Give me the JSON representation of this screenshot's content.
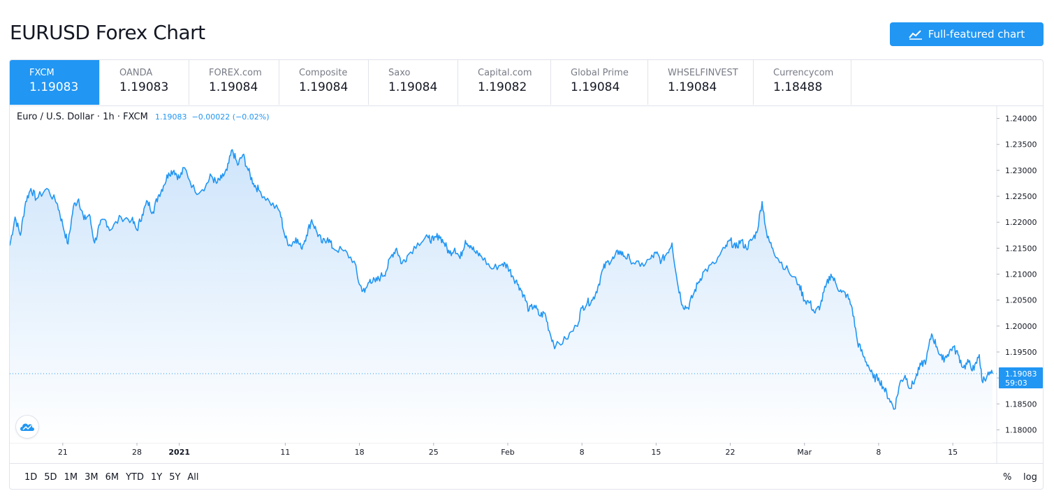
{
  "header": {
    "title": "EURUSD Forex Chart",
    "button_label": "Full-featured chart"
  },
  "tabs": [
    {
      "source": "FXCM",
      "price": "1.19083",
      "active": true
    },
    {
      "source": "OANDA",
      "price": "1.19083"
    },
    {
      "source": "FOREX.com",
      "price": "1.19084"
    },
    {
      "source": "Composite",
      "price": "1.19084"
    },
    {
      "source": "Saxo",
      "price": "1.19084"
    },
    {
      "source": "Capital.com",
      "price": "1.19082"
    },
    {
      "source": "Global Prime",
      "price": "1.19084"
    },
    {
      "source": "WHSELFINVEST",
      "price": "1.19084"
    },
    {
      "source": "Currencycom",
      "price": "1.18488"
    }
  ],
  "legend": {
    "symbol": "Euro / U.S. Dollar · 1h · FXCM",
    "last": "1.19083",
    "change": "−0.00022 (−0.02%)"
  },
  "price_label": {
    "price": "1.19083",
    "countdown": "59:03"
  },
  "ranges": [
    "1D",
    "5D",
    "1M",
    "3M",
    "6M",
    "YTD",
    "1Y",
    "5Y",
    "All"
  ],
  "scale_buttons": {
    "percent": "%",
    "log": "log"
  },
  "colors": {
    "accent": "#2196f3",
    "line": "#2196f3",
    "area_top": "#cfe5fb",
    "area_bottom": "#ffffff"
  },
  "icons": {
    "button_icon": "chart-line-icon",
    "logo": "tradingview-cloud-icon"
  },
  "chart_data": {
    "type": "area",
    "title": "",
    "xlabel": "",
    "ylabel": "",
    "ylim": [
      1.1775,
      1.2425
    ],
    "y_ticks": [
      "1.24000",
      "1.23500",
      "1.23000",
      "1.22500",
      "1.22000",
      "1.21500",
      "1.21000",
      "1.20500",
      "1.20000",
      "1.19500",
      "1.19000",
      "1.18500",
      "1.18000"
    ],
    "y_tick_values": [
      1.24,
      1.235,
      1.23,
      1.225,
      1.22,
      1.215,
      1.21,
      1.205,
      1.2,
      1.195,
      1.19,
      1.185,
      1.18
    ],
    "x_ticks": [
      {
        "label": "21",
        "x": "2020-12-21"
      },
      {
        "label": "28",
        "x": "2020-12-28"
      },
      {
        "label": "2021",
        "x": "2021-01-01",
        "bold": true
      },
      {
        "label": "11",
        "x": "2021-01-11"
      },
      {
        "label": "18",
        "x": "2021-01-18"
      },
      {
        "label": "25",
        "x": "2021-01-25"
      },
      {
        "label": "Feb",
        "x": "2021-02-01"
      },
      {
        "label": "8",
        "x": "2021-02-08"
      },
      {
        "label": "15",
        "x": "2021-02-15"
      },
      {
        "label": "22",
        "x": "2021-02-22"
      },
      {
        "label": "Mar",
        "x": "2021-03-01"
      },
      {
        "label": "8",
        "x": "2021-03-08"
      },
      {
        "label": "15",
        "x": "2021-03-15"
      }
    ],
    "x_range": [
      "2020-12-16 00:00",
      "2021-03-18 18:00"
    ],
    "last_price": 1.19083,
    "series": [
      {
        "values": [
          [
            "2020-12-16 00:00",
            1.2155
          ],
          [
            "2020-12-16 12:00",
            1.221
          ],
          [
            "2020-12-17 00:00",
            1.2175
          ],
          [
            "2020-12-17 12:00",
            1.224
          ],
          [
            "2020-12-18 00:00",
            1.2265
          ],
          [
            "2020-12-18 12:00",
            1.2245
          ],
          [
            "2020-12-19 12:00",
            1.2265
          ],
          [
            "2020-12-20 12:00",
            1.2235
          ],
          [
            "2020-12-21 00:00",
            1.2195
          ],
          [
            "2020-12-21 12:00",
            1.2158
          ],
          [
            "2020-12-22 00:00",
            1.223
          ],
          [
            "2020-12-22 12:00",
            1.2245
          ],
          [
            "2020-12-23 00:00",
            1.2205
          ],
          [
            "2020-12-23 12:00",
            1.2215
          ],
          [
            "2020-12-24 00:00",
            1.216
          ],
          [
            "2020-12-24 12:00",
            1.2195
          ],
          [
            "2020-12-25 00:00",
            1.2205
          ],
          [
            "2020-12-25 12:00",
            1.2185
          ],
          [
            "2020-12-26 12:00",
            1.221
          ],
          [
            "2020-12-27 12:00",
            1.2205
          ],
          [
            "2020-12-28 00:00",
            1.2185
          ],
          [
            "2020-12-28 12:00",
            1.2215
          ],
          [
            "2020-12-29 00:00",
            1.224
          ],
          [
            "2020-12-29 12:00",
            1.222
          ],
          [
            "2020-12-30 00:00",
            1.225
          ],
          [
            "2020-12-30 12:00",
            1.227
          ],
          [
            "2020-12-31 00:00",
            1.2295
          ],
          [
            "2020-12-31 12:00",
            1.23
          ],
          [
            "2021-01-01 00:00",
            1.2285
          ],
          [
            "2021-01-01 12:00",
            1.2305
          ],
          [
            "2021-01-02 12:00",
            1.2258
          ],
          [
            "2021-01-03 12:00",
            1.227
          ],
          [
            "2021-01-04 00:00",
            1.229
          ],
          [
            "2021-01-04 12:00",
            1.2275
          ],
          [
            "2021-01-05 00:00",
            1.2285
          ],
          [
            "2021-01-05 12:00",
            1.23
          ],
          [
            "2021-01-06 00:00",
            1.234
          ],
          [
            "2021-01-06 12:00",
            1.231
          ],
          [
            "2021-01-07 00:00",
            1.233
          ],
          [
            "2021-01-07 12:00",
            1.23
          ],
          [
            "2021-01-08 00:00",
            1.2275
          ],
          [
            "2021-01-08 12:00",
            1.2262
          ],
          [
            "2021-01-09 12:00",
            1.224
          ],
          [
            "2021-01-10 12:00",
            1.222
          ],
          [
            "2021-01-11 00:00",
            1.217
          ],
          [
            "2021-01-11 12:00",
            1.2155
          ],
          [
            "2021-01-12 00:00",
            1.217
          ],
          [
            "2021-01-12 12:00",
            1.215
          ],
          [
            "2021-01-13 00:00",
            1.2175
          ],
          [
            "2021-01-13 12:00",
            1.2205
          ],
          [
            "2021-01-14 00:00",
            1.218
          ],
          [
            "2021-01-14 12:00",
            1.216
          ],
          [
            "2021-01-15 00:00",
            1.217
          ],
          [
            "2021-01-15 12:00",
            1.215
          ],
          [
            "2021-01-16 12:00",
            1.2145
          ],
          [
            "2021-01-17 12:00",
            1.2125
          ],
          [
            "2021-01-18 00:00",
            1.208
          ],
          [
            "2021-01-18 12:00",
            1.2065
          ],
          [
            "2021-01-19 00:00",
            1.209
          ],
          [
            "2021-01-19 12:00",
            1.2085
          ],
          [
            "2021-01-20 00:00",
            1.2095
          ],
          [
            "2021-01-20 12:00",
            1.2105
          ],
          [
            "2021-01-21 00:00",
            1.2135
          ],
          [
            "2021-01-21 12:00",
            1.215
          ],
          [
            "2021-01-22 00:00",
            1.212
          ],
          [
            "2021-01-22 12:00",
            1.2135
          ],
          [
            "2021-01-23 12:00",
            1.216
          ],
          [
            "2021-01-24 12:00",
            1.217
          ],
          [
            "2021-01-25 00:00",
            1.2165
          ],
          [
            "2021-01-25 12:00",
            1.2175
          ],
          [
            "2021-01-26 00:00",
            1.216
          ],
          [
            "2021-01-26 12:00",
            1.214
          ],
          [
            "2021-01-27 00:00",
            1.215
          ],
          [
            "2021-01-27 12:00",
            1.213
          ],
          [
            "2021-01-28 00:00",
            1.2165
          ],
          [
            "2021-01-28 12:00",
            1.2155
          ],
          [
            "2021-01-29 00:00",
            1.214
          ],
          [
            "2021-01-29 12:00",
            1.2135
          ],
          [
            "2021-01-30 12:00",
            1.211
          ],
          [
            "2021-01-31 12:00",
            1.212
          ],
          [
            "2021-02-01 00:00",
            1.2115
          ],
          [
            "2021-02-01 12:00",
            1.2095
          ],
          [
            "2021-02-02 00:00",
            1.208
          ],
          [
            "2021-02-02 12:00",
            1.206
          ],
          [
            "2021-02-03 00:00",
            1.203
          ],
          [
            "2021-02-03 12:00",
            1.204
          ],
          [
            "2021-02-04 00:00",
            1.202
          ],
          [
            "2021-02-04 12:00",
            1.2025
          ],
          [
            "2021-02-05 00:00",
            1.1985
          ],
          [
            "2021-02-05 12:00",
            1.196
          ],
          [
            "2021-02-06 12:00",
            1.1975
          ],
          [
            "2021-02-07 12:00",
            1.2
          ],
          [
            "2021-02-08 00:00",
            1.2035
          ],
          [
            "2021-02-08 12:00",
            1.2045
          ],
          [
            "2021-02-09 00:00",
            1.205
          ],
          [
            "2021-02-09 12:00",
            1.2075
          ],
          [
            "2021-02-10 00:00",
            1.211
          ],
          [
            "2021-02-10 12:00",
            1.2125
          ],
          [
            "2021-02-11 00:00",
            1.213
          ],
          [
            "2021-02-11 12:00",
            1.2145
          ],
          [
            "2021-02-12 00:00",
            1.2135
          ],
          [
            "2021-02-12 12:00",
            1.213
          ],
          [
            "2021-02-13 12:00",
            1.2115
          ],
          [
            "2021-02-14 12:00",
            1.213
          ],
          [
            "2021-02-15 00:00",
            1.214
          ],
          [
            "2021-02-15 12:00",
            1.2125
          ],
          [
            "2021-02-16 00:00",
            1.214
          ],
          [
            "2021-02-16 12:00",
            1.216
          ],
          [
            "2021-02-17 00:00",
            1.2085
          ],
          [
            "2021-02-17 12:00",
            1.204
          ],
          [
            "2021-02-18 00:00",
            1.2035
          ],
          [
            "2021-02-18 12:00",
            1.206
          ],
          [
            "2021-02-19 00:00",
            1.2085
          ],
          [
            "2021-02-19 12:00",
            1.2105
          ],
          [
            "2021-02-20 12:00",
            1.212
          ],
          [
            "2021-02-21 12:00",
            1.215
          ],
          [
            "2021-02-22 00:00",
            1.2165
          ],
          [
            "2021-02-22 12:00",
            1.215
          ],
          [
            "2021-02-23 00:00",
            1.2165
          ],
          [
            "2021-02-23 12:00",
            1.215
          ],
          [
            "2021-02-24 00:00",
            1.2165
          ],
          [
            "2021-02-24 12:00",
            1.218
          ],
          [
            "2021-02-25 00:00",
            1.224
          ],
          [
            "2021-02-25 12:00",
            1.217
          ],
          [
            "2021-02-26 00:00",
            1.215
          ],
          [
            "2021-02-26 12:00",
            1.213
          ],
          [
            "2021-02-27 12:00",
            1.2105
          ],
          [
            "2021-02-28 12:00",
            1.208
          ],
          [
            "2021-03-01 00:00",
            1.205
          ],
          [
            "2021-03-01 12:00",
            1.2045
          ],
          [
            "2021-03-02 00:00",
            1.2025
          ],
          [
            "2021-03-02 12:00",
            1.204
          ],
          [
            "2021-03-03 00:00",
            1.2075
          ],
          [
            "2021-03-03 12:00",
            1.21
          ],
          [
            "2021-03-04 00:00",
            1.208
          ],
          [
            "2021-03-04 12:00",
            1.2065
          ],
          [
            "2021-03-05 00:00",
            1.206
          ],
          [
            "2021-03-05 12:00",
            1.2035
          ],
          [
            "2021-03-06 00:00",
            1.197
          ],
          [
            "2021-03-06 12:00",
            1.1945
          ],
          [
            "2021-03-07 00:00",
            1.1925
          ],
          [
            "2021-03-07 12:00",
            1.19
          ],
          [
            "2021-03-08 00:00",
            1.19
          ],
          [
            "2021-03-08 12:00",
            1.188
          ],
          [
            "2021-03-09 00:00",
            1.186
          ],
          [
            "2021-03-09 12:00",
            1.184
          ],
          [
            "2021-03-10 00:00",
            1.189
          ],
          [
            "2021-03-10 12:00",
            1.1905
          ],
          [
            "2021-03-11 00:00",
            1.188
          ],
          [
            "2021-03-11 12:00",
            1.19
          ],
          [
            "2021-03-12 00:00",
            1.1925
          ],
          [
            "2021-03-12 12:00",
            1.1935
          ],
          [
            "2021-03-13 00:00",
            1.1985
          ],
          [
            "2021-03-13 12:00",
            1.196
          ],
          [
            "2021-03-14 00:00",
            1.1935
          ],
          [
            "2021-03-14 12:00",
            1.1945
          ],
          [
            "2021-03-15 00:00",
            1.196
          ],
          [
            "2021-03-15 12:00",
            1.1945
          ],
          [
            "2021-03-16 00:00",
            1.192
          ],
          [
            "2021-03-16 12:00",
            1.193
          ],
          [
            "2021-03-17 00:00",
            1.1915
          ],
          [
            "2021-03-17 12:00",
            1.1945
          ],
          [
            "2021-03-17 18:00",
            1.1895
          ],
          [
            "2021-03-18 06:00",
            1.1905
          ],
          [
            "2021-03-18 18:00",
            1.19083
          ]
        ]
      }
    ]
  }
}
